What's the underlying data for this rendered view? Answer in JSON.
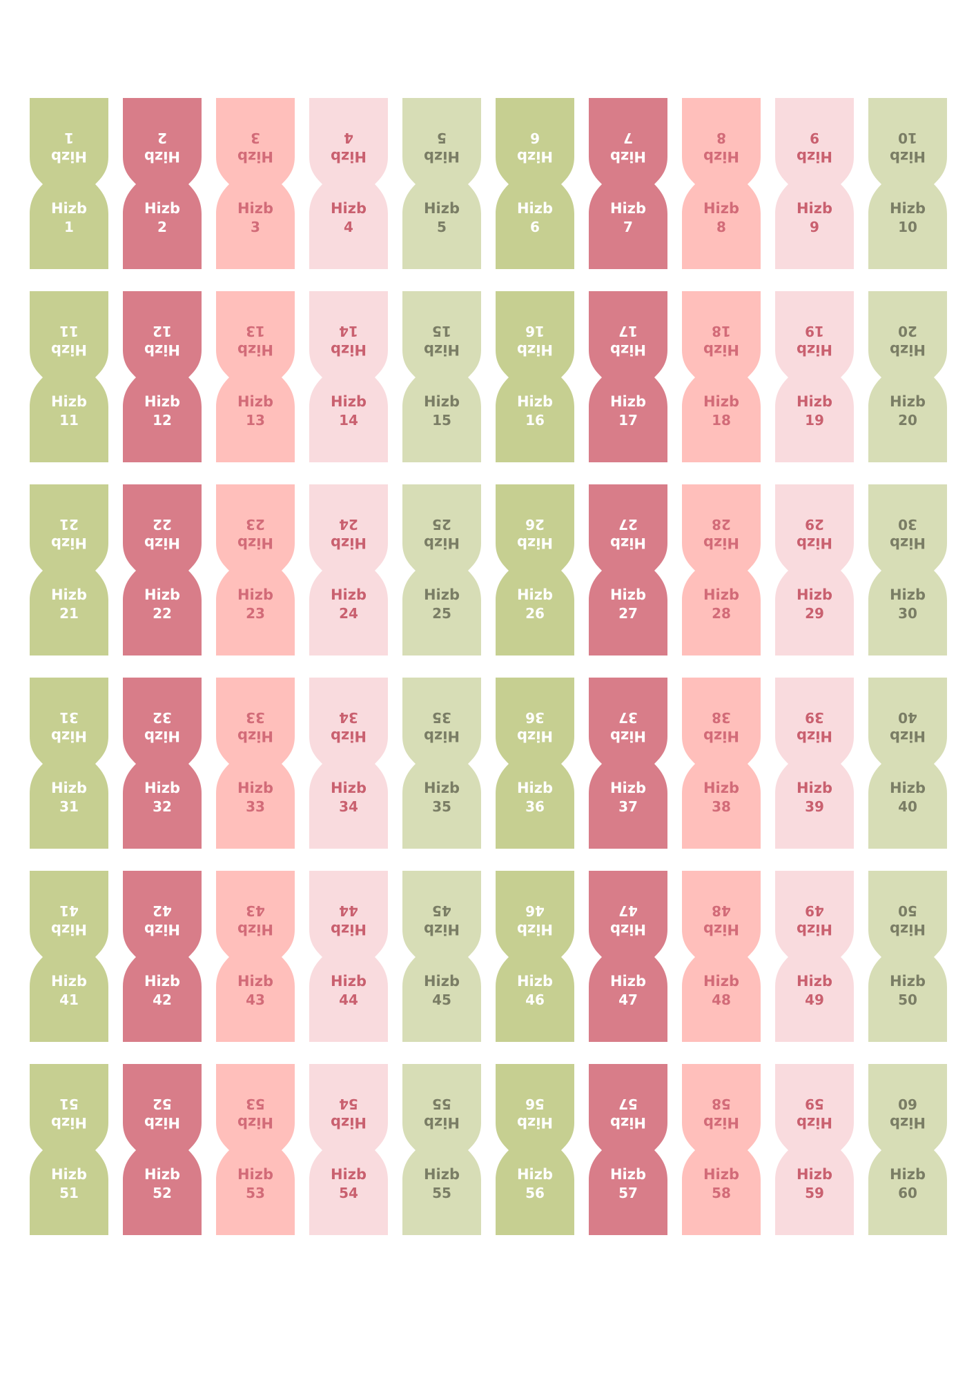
{
  "label": "Hizb",
  "column_styles": [
    "green",
    "rose",
    "salmon",
    "pink",
    "pale"
  ],
  "palette": {
    "green": {
      "fill": "#c6cf91",
      "text": "#ffffff"
    },
    "rose": {
      "fill": "#d87d89",
      "text": "#ffffff"
    },
    "salmon": {
      "fill": "#ffbfbb",
      "text": "#d26b78"
    },
    "pink": {
      "fill": "#f9dbde",
      "text": "#c9606f"
    },
    "pale": {
      "fill": "#d7ddb6",
      "text": "#7a7d65"
    }
  },
  "tags": [
    "1",
    "2",
    "3",
    "4",
    "5",
    "6",
    "7",
    "8",
    "9",
    "10",
    "11",
    "12",
    "13",
    "14",
    "15",
    "16",
    "17",
    "18",
    "19",
    "20",
    "21",
    "22",
    "23",
    "24",
    "25",
    "26",
    "27",
    "28",
    "29",
    "30",
    "31",
    "32",
    "33",
    "34",
    "35",
    "36",
    "37",
    "38",
    "39",
    "40",
    "41",
    "42",
    "43",
    "44",
    "45",
    "46",
    "47",
    "48",
    "49",
    "50",
    "51",
    "52",
    "53",
    "54",
    "55",
    "56",
    "57",
    "58",
    "59",
    "60"
  ]
}
